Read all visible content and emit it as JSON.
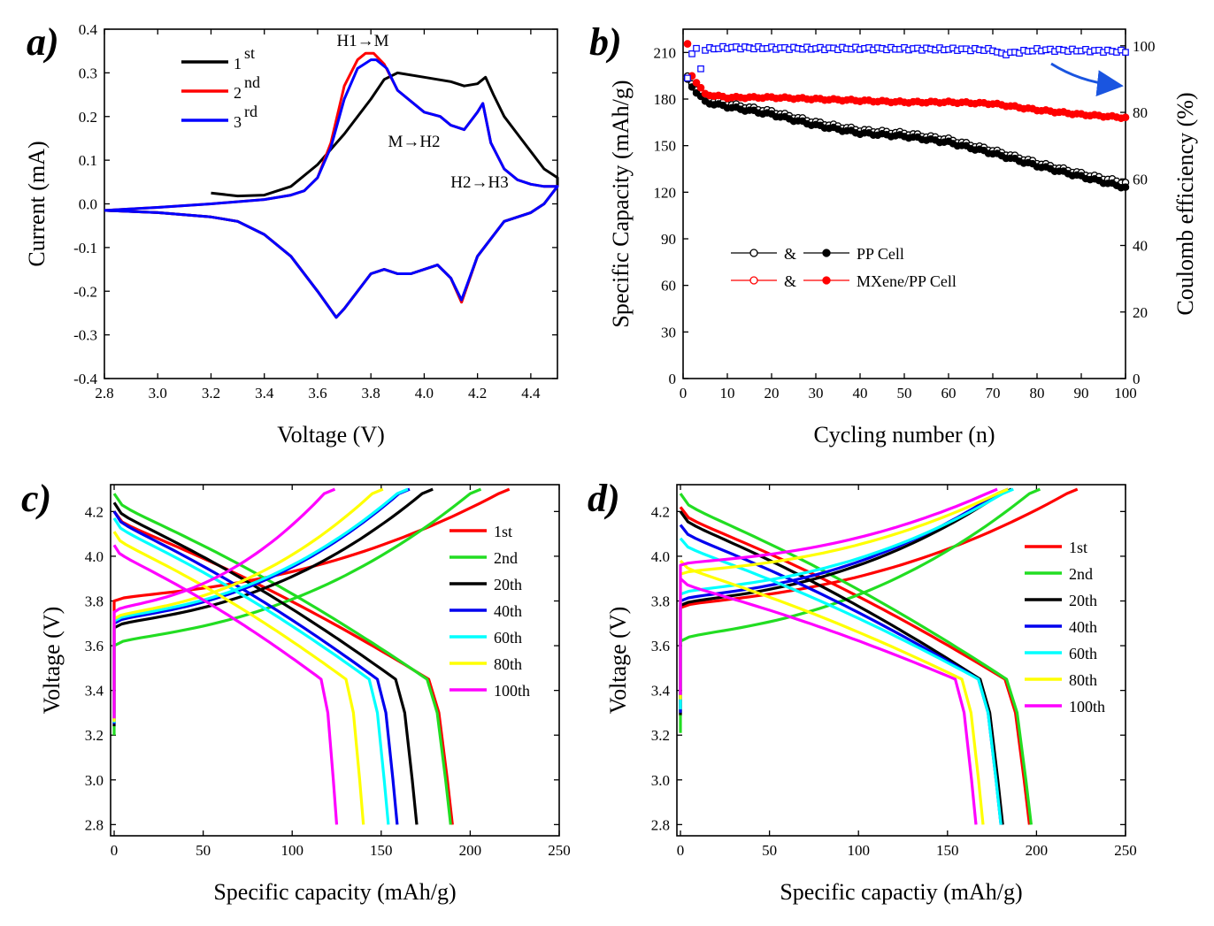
{
  "colors": {
    "first": "#ff0000",
    "second": "#22dd22",
    "third": "#0000ee",
    "black": "#000000",
    "red": "#ff0000",
    "blue": "#0000ff",
    "cyan": "#00ffff",
    "yellow": "#ffff00",
    "magenta": "#ff00ff"
  },
  "chart_data": [
    {
      "panel": "a)",
      "type": "line",
      "xlabel": "Voltage (V)",
      "ylabel": "Current (mA)",
      "xlim": [
        2.8,
        4.5
      ],
      "ylim": [
        -0.4,
        0.4
      ],
      "xticks": [
        2.8,
        3.0,
        3.2,
        3.4,
        3.6,
        3.8,
        4.0,
        4.2,
        4.4
      ],
      "yticks": [
        -0.4,
        -0.3,
        -0.2,
        -0.1,
        0.0,
        0.1,
        0.2,
        0.3,
        0.4
      ],
      "legend": [
        {
          "num": "1",
          "sup": "st",
          "color": "#000000"
        },
        {
          "num": "2",
          "sup": "nd",
          "color": "#ff0000"
        },
        {
          "num": "3",
          "sup": "rd",
          "color": "#0000ff"
        }
      ],
      "annotations": [
        "H1→M",
        "M→H2",
        "H2→H3"
      ],
      "series": [
        {
          "name": "1st",
          "color": "#000000",
          "x": [
            3.2,
            3.3,
            3.4,
            3.5,
            3.6,
            3.7,
            3.8,
            3.85,
            3.9,
            4.0,
            4.1,
            4.15,
            4.2,
            4.23,
            4.26,
            4.3,
            4.35,
            4.4,
            4.45,
            4.5,
            4.5,
            4.45,
            4.4,
            4.3,
            4.2,
            4.14,
            4.1,
            4.05,
            4.0,
            3.95,
            3.9,
            3.85,
            3.8,
            3.7,
            3.67,
            3.6,
            3.5,
            3.4,
            3.3,
            3.2,
            3.0,
            2.8
          ],
          "y": [
            0.025,
            0.018,
            0.02,
            0.04,
            0.09,
            0.16,
            0.24,
            0.285,
            0.3,
            0.29,
            0.28,
            0.27,
            0.275,
            0.29,
            0.25,
            0.2,
            0.16,
            0.12,
            0.08,
            0.06,
            0.04,
            0.0,
            -0.02,
            -0.04,
            -0.12,
            -0.225,
            -0.17,
            -0.14,
            -0.15,
            -0.16,
            -0.16,
            -0.15,
            -0.16,
            -0.24,
            -0.26,
            -0.2,
            -0.12,
            -0.07,
            -0.04,
            -0.03,
            -0.02,
            -0.015
          ]
        },
        {
          "name": "2nd",
          "color": "#ff0000",
          "x": [
            2.8,
            3.0,
            3.2,
            3.4,
            3.5,
            3.55,
            3.6,
            3.65,
            3.7,
            3.75,
            3.78,
            3.81,
            3.85,
            3.9,
            4.0,
            4.06,
            4.1,
            4.15,
            4.2,
            4.22,
            4.25,
            4.3,
            4.35,
            4.4,
            4.45,
            4.5,
            4.5,
            4.45,
            4.4,
            4.3,
            4.2,
            4.14,
            4.1,
            4.05,
            4.0,
            3.95,
            3.9,
            3.85,
            3.8,
            3.7,
            3.67,
            3.6,
            3.5,
            3.4,
            3.3,
            3.2,
            3.0,
            2.8
          ],
          "y": [
            -0.015,
            -0.008,
            0.0,
            0.01,
            0.02,
            0.03,
            0.06,
            0.14,
            0.27,
            0.33,
            0.345,
            0.345,
            0.32,
            0.26,
            0.21,
            0.2,
            0.18,
            0.17,
            0.21,
            0.23,
            0.14,
            0.08,
            0.055,
            0.045,
            0.04,
            0.04,
            0.04,
            0.0,
            -0.02,
            -0.04,
            -0.12,
            -0.225,
            -0.17,
            -0.14,
            -0.15,
            -0.16,
            -0.16,
            -0.15,
            -0.16,
            -0.24,
            -0.26,
            -0.2,
            -0.12,
            -0.07,
            -0.04,
            -0.03,
            -0.02,
            -0.015
          ]
        },
        {
          "name": "3rd",
          "color": "#0000ff",
          "x": [
            2.8,
            3.0,
            3.2,
            3.4,
            3.5,
            3.55,
            3.6,
            3.65,
            3.7,
            3.75,
            3.8,
            3.82,
            3.86,
            3.9,
            4.0,
            4.06,
            4.1,
            4.15,
            4.2,
            4.22,
            4.25,
            4.3,
            4.35,
            4.4,
            4.45,
            4.5,
            4.5,
            4.45,
            4.4,
            4.3,
            4.2,
            4.14,
            4.1,
            4.05,
            4.0,
            3.95,
            3.9,
            3.85,
            3.8,
            3.7,
            3.67,
            3.6,
            3.5,
            3.4,
            3.3,
            3.2,
            3.0,
            2.8
          ],
          "y": [
            -0.015,
            -0.008,
            0.0,
            0.01,
            0.02,
            0.03,
            0.06,
            0.13,
            0.24,
            0.31,
            0.33,
            0.33,
            0.31,
            0.26,
            0.21,
            0.2,
            0.18,
            0.17,
            0.21,
            0.23,
            0.14,
            0.08,
            0.055,
            0.045,
            0.04,
            0.04,
            0.04,
            0.0,
            -0.02,
            -0.04,
            -0.12,
            -0.22,
            -0.17,
            -0.14,
            -0.15,
            -0.16,
            -0.16,
            -0.15,
            -0.16,
            -0.24,
            -0.26,
            -0.2,
            -0.12,
            -0.07,
            -0.04,
            -0.03,
            -0.02,
            -0.015
          ]
        }
      ]
    },
    {
      "panel": "b)",
      "type": "scatter",
      "xlabel": "Cycling number (n)",
      "ylabel": "Specific Capacity (mAh/g)",
      "y2label": "Coulomb efficiency (%)",
      "xlim": [
        0,
        100
      ],
      "ylim": [
        0,
        225
      ],
      "y2lim": [
        0,
        105
      ],
      "xticks": [
        0,
        10,
        20,
        30,
        40,
        50,
        60,
        70,
        80,
        90,
        100
      ],
      "yticks": [
        0,
        30,
        60,
        90,
        120,
        150,
        180,
        210
      ],
      "y2ticks": [
        0,
        20,
        40,
        60,
        80,
        100
      ],
      "legend": [
        {
          "amp": "&",
          "label": "PP Cell",
          "color": "#000000"
        },
        {
          "amp": "&",
          "label": "MXene/PP Cell",
          "color": "#ff0000"
        }
      ],
      "capacity_pp": {
        "x": [
          1,
          2,
          5,
          10,
          20,
          30,
          40,
          50,
          60,
          70,
          80,
          90,
          100
        ],
        "y": [
          192,
          188,
          178,
          175,
          170,
          163,
          158,
          156,
          152,
          145,
          137,
          130,
          123
        ]
      },
      "capacity_pp_charge": {
        "x": [
          1,
          2,
          5,
          10,
          20,
          30,
          40,
          50,
          60,
          70,
          80,
          90,
          100
        ],
        "y": [
          194,
          190,
          180,
          177,
          172,
          165,
          160,
          158,
          154,
          147,
          139,
          132,
          126
        ]
      },
      "capacity_mxene": {
        "x": [
          1,
          2,
          5,
          10,
          20,
          30,
          40,
          50,
          60,
          70,
          80,
          90,
          100
        ],
        "y": [
          215,
          195,
          183,
          181,
          181,
          180,
          179,
          178,
          178,
          177,
          173,
          170,
          168
        ]
      },
      "efficiency": {
        "x": [
          1,
          2,
          3,
          4,
          5,
          10,
          20,
          30,
          40,
          50,
          60,
          70,
          72,
          80,
          90,
          100
        ],
        "y": [
          90,
          98,
          99,
          93,
          99,
          99.5,
          99.3,
          99.2,
          99.2,
          99.1,
          99,
          98.8,
          97.5,
          98.8,
          98.6,
          98.3
        ]
      }
    },
    {
      "panel": "c)",
      "type": "line",
      "xlabel": "Specific capacity (mAh/g)",
      "ylabel": "Voltage (V)",
      "xlim": [
        -2,
        250
      ],
      "ylim": [
        2.75,
        4.32
      ],
      "xticks": [
        0,
        50,
        100,
        150,
        200,
        250
      ],
      "yticks": [
        2.8,
        3.0,
        3.2,
        3.4,
        3.6,
        3.8,
        4.0,
        4.2
      ],
      "legend": [
        "1st",
        "2nd",
        "20th",
        "40th",
        "60th",
        "80th",
        "100th"
      ],
      "curves": [
        {
          "name": "1st",
          "color": "#ff0000",
          "charge_start": 3.8,
          "charge_end_cap": 216,
          "discharge_start": 4.2,
          "discharge_end_cap": 190
        },
        {
          "name": "2nd",
          "color": "#22dd22",
          "charge_start": 3.6,
          "charge_end_cap": 200,
          "discharge_start": 4.28,
          "discharge_end_cap": 189
        },
        {
          "name": "20th",
          "color": "#000000",
          "charge_start": 3.68,
          "charge_end_cap": 173,
          "discharge_start": 4.24,
          "discharge_end_cap": 170
        },
        {
          "name": "40th",
          "color": "#0000ee",
          "charge_start": 3.7,
          "charge_end_cap": 160,
          "discharge_start": 4.2,
          "discharge_end_cap": 159
        },
        {
          "name": "60th",
          "color": "#00ffff",
          "charge_start": 3.71,
          "charge_end_cap": 159,
          "discharge_start": 4.17,
          "discharge_end_cap": 154
        },
        {
          "name": "80th",
          "color": "#ffff00",
          "charge_start": 3.72,
          "charge_end_cap": 145,
          "discharge_start": 4.11,
          "discharge_end_cap": 140
        },
        {
          "name": "100th",
          "color": "#ff00ff",
          "charge_start": 3.75,
          "charge_end_cap": 118,
          "discharge_start": 4.05,
          "discharge_end_cap": 125
        }
      ]
    },
    {
      "panel": "d)",
      "type": "line",
      "xlabel": "Specific capactiy (mAh/g)",
      "ylabel": "Voltage (V)",
      "xlim": [
        -2,
        250
      ],
      "ylim": [
        2.75,
        4.32
      ],
      "xticks": [
        0,
        50,
        100,
        150,
        200,
        250
      ],
      "yticks": [
        2.8,
        3.0,
        3.2,
        3.4,
        3.6,
        3.8,
        4.0,
        4.2
      ],
      "legend": [
        "1st",
        "2nd",
        "20th",
        "40th",
        "60th",
        "80th",
        "100th"
      ],
      "curves": [
        {
          "name": "1st",
          "color": "#ff0000",
          "charge_start": 3.77,
          "charge_end_cap": 217,
          "discharge_start": 4.22,
          "discharge_end_cap": 196
        },
        {
          "name": "2nd",
          "color": "#22dd22",
          "charge_start": 3.62,
          "charge_end_cap": 196,
          "discharge_start": 4.28,
          "discharge_end_cap": 197
        },
        {
          "name": "20th",
          "color": "#000000",
          "charge_start": 3.78,
          "charge_end_cap": 180,
          "discharge_start": 4.2,
          "discharge_end_cap": 181
        },
        {
          "name": "40th",
          "color": "#0000ee",
          "charge_start": 3.8,
          "charge_end_cap": 178,
          "discharge_start": 4.14,
          "discharge_end_cap": 180
        },
        {
          "name": "60th",
          "color": "#00ffff",
          "charge_start": 3.83,
          "charge_end_cap": 181,
          "discharge_start": 4.08,
          "discharge_end_cap": 180
        },
        {
          "name": "80th",
          "color": "#ffff00",
          "charge_start": 3.92,
          "charge_end_cap": 178,
          "discharge_start": 3.98,
          "discharge_end_cap": 170
        },
        {
          "name": "100th",
          "color": "#ff00ff",
          "charge_start": 3.96,
          "charge_end_cap": 172,
          "discharge_start": 3.9,
          "discharge_end_cap": 166
        }
      ]
    }
  ]
}
